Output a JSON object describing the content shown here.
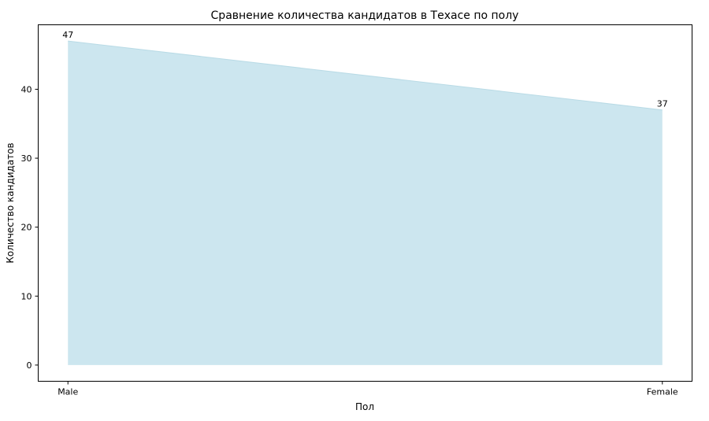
{
  "chart_data": {
    "type": "area",
    "title": "Сравнение количества кандидатов в Техасе по полу",
    "xlabel": "Пол",
    "ylabel": "Количество кандидатов",
    "categories": [
      "Male",
      "Female"
    ],
    "values": [
      47,
      37
    ],
    "data_labels": [
      "47",
      "37"
    ],
    "ylim": [
      -2.35,
      49.35
    ],
    "yticks": [
      0,
      10,
      20,
      30,
      40
    ],
    "grid": false,
    "fill_color": "#cce6ef",
    "line_color": "#b9dbe6"
  }
}
